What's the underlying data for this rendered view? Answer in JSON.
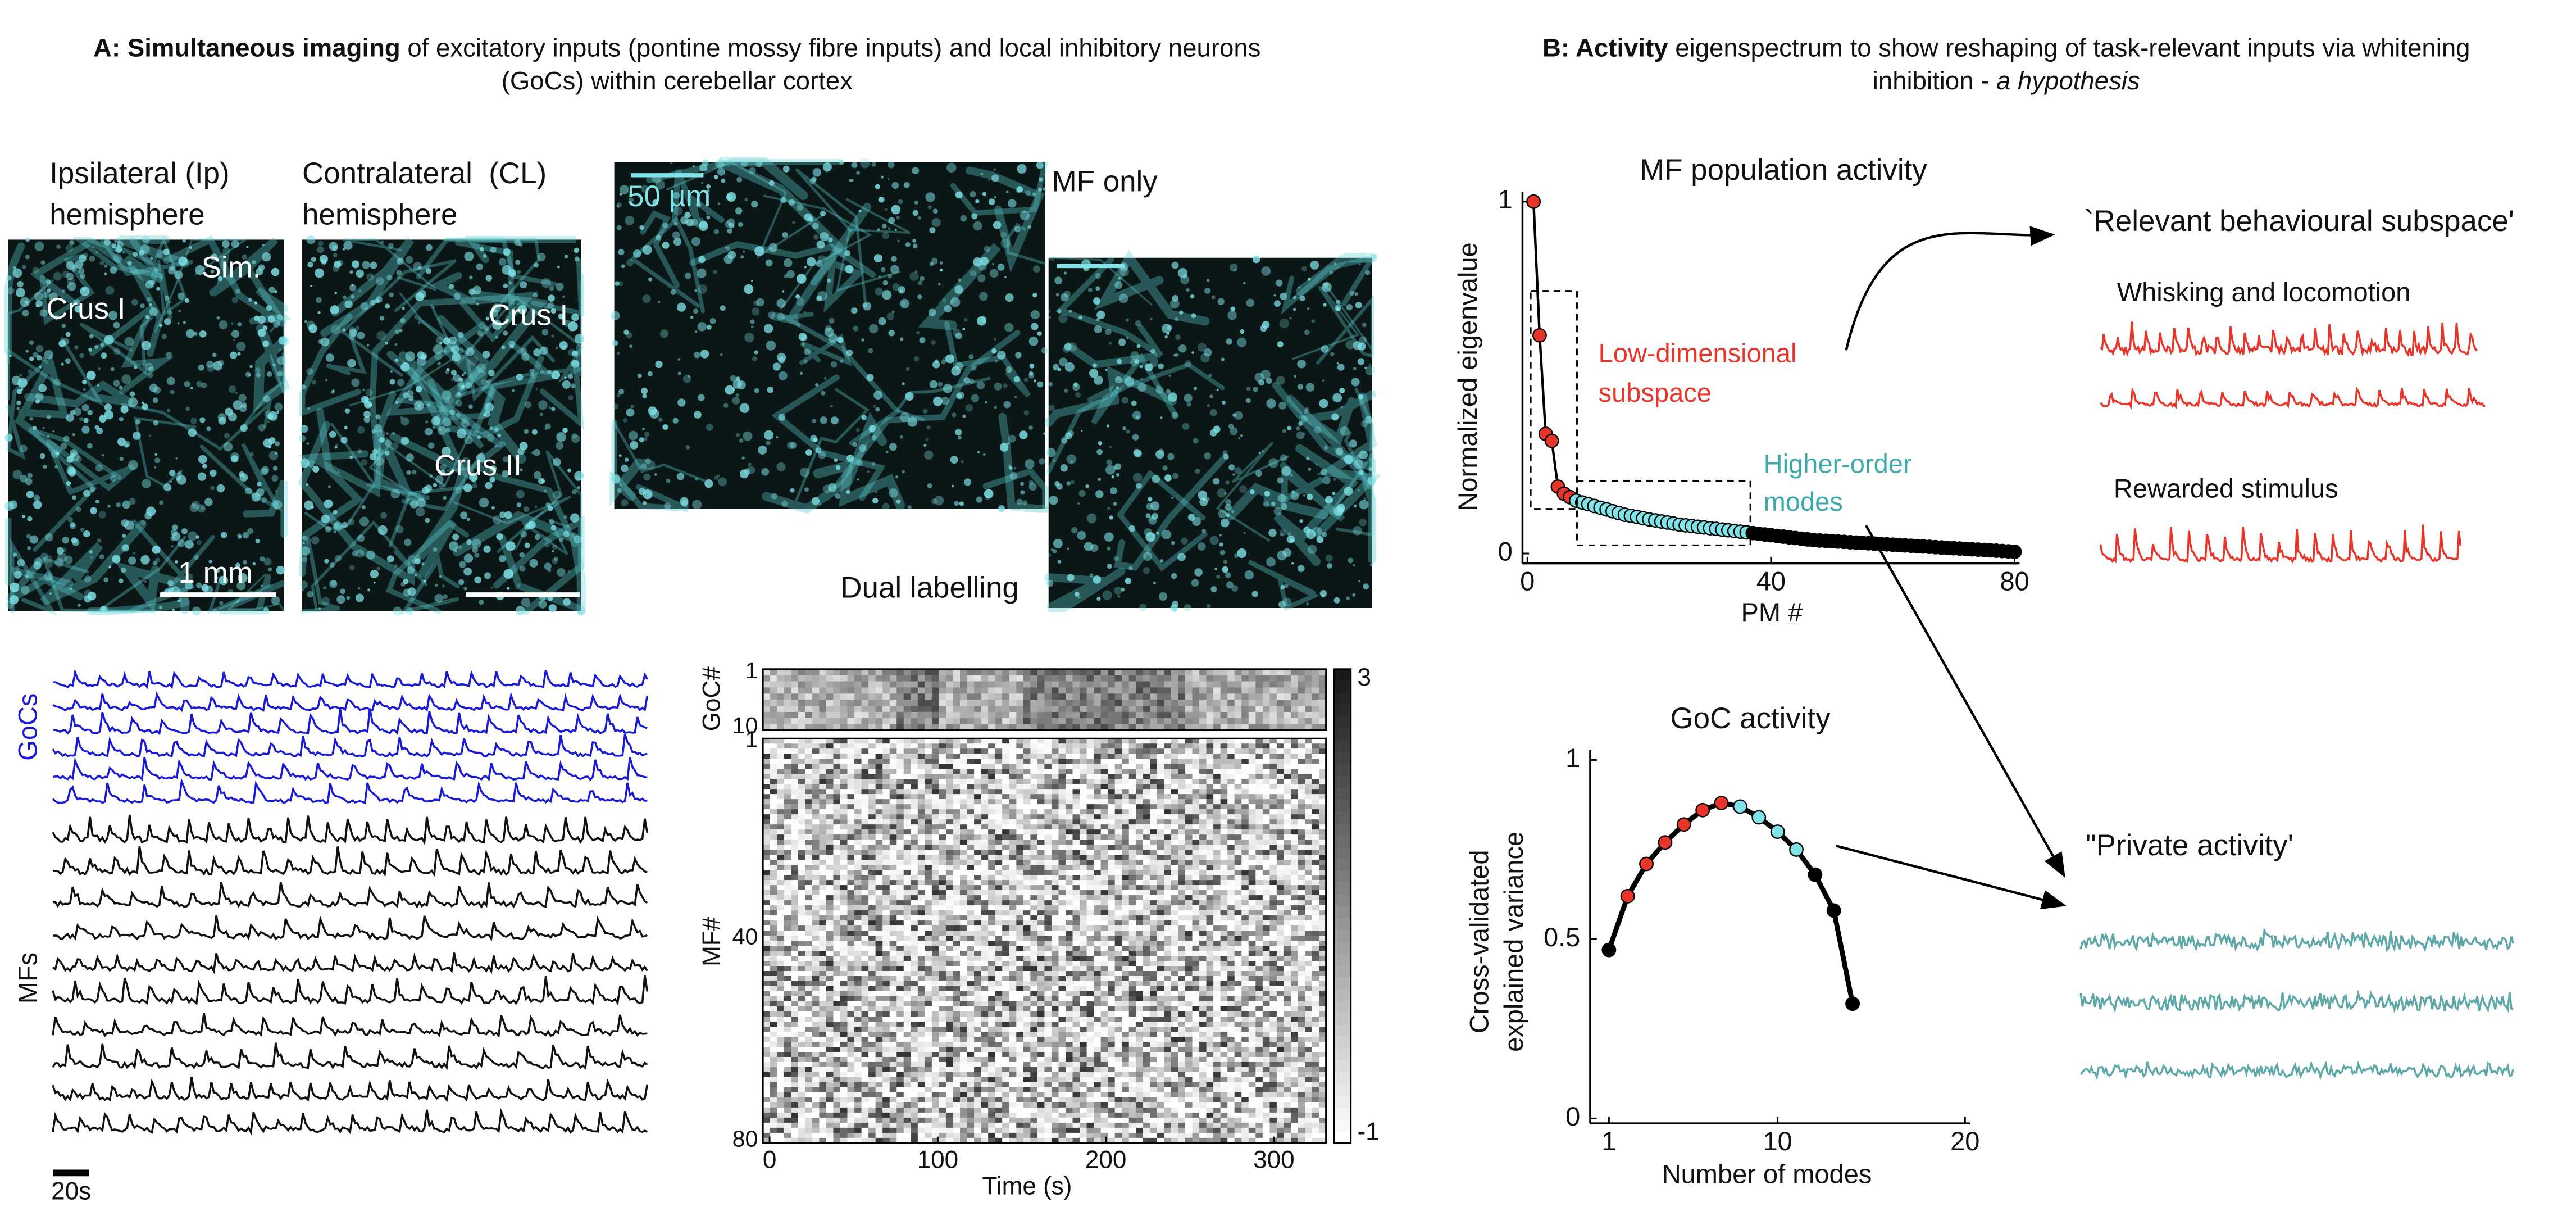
{
  "panel_a": {
    "title": {
      "bold": "A: Simultaneous imaging",
      "line1": " of excitatory inputs (pontine mossy fibre inputs) and local inhibitory neurons",
      "line2": "(GoCs) within cerebellar cortex"
    },
    "hemispheres": {
      "ipsilateral": [
        "Ipsilateral (Ip)",
        "hemisphere"
      ],
      "contralateral": [
        "Contralateral  (CL)",
        "hemisphere"
      ],
      "sim": "Sim.",
      "crus_i_ip": "Crus I",
      "crus_i_cl": "Crus I",
      "crus_ii": "Crus II",
      "scale": "1 mm"
    },
    "zoom": {
      "scale": "50 µm",
      "mf_only": "MF only",
      "dual": "Dual labelling"
    },
    "traces": {
      "goc_label": "GoCs",
      "mf_label": "MFs",
      "scale": "20s"
    },
    "heatmap": {
      "goc_label": "GoC#",
      "goc_ticks": [
        1,
        10
      ],
      "mf_label": "MF#",
      "mf_ticks": [
        1,
        40,
        80
      ],
      "xlabel": "Time (s)",
      "xlim": [
        -4,
        331
      ],
      "xticks": [
        0,
        100,
        200,
        300
      ],
      "colorbar_ticks": [
        3,
        -1
      ]
    }
  },
  "panel_b": {
    "title": {
      "bold": "B: Activity",
      "line1": " eigenspectrum to show reshaping of task-relevant inputs via whitening",
      "line2": "inhibition - ",
      "italic": "a hypothesis"
    },
    "eigenspectrum": {
      "type": "scatter",
      "title": "MF population activity",
      "xlabel": "PM #",
      "ylabel": "Normalized eigenvalue",
      "xlim": [
        0,
        80
      ],
      "ylim": [
        0,
        1
      ],
      "xticks": [
        0,
        40,
        80
      ],
      "yticks": [
        1,
        0
      ],
      "annotations": {
        "low": [
          "Low-dimensional",
          "subspace"
        ],
        "high": [
          "Higher-order",
          "modes"
        ]
      },
      "series": [
        {
          "color": "#e8352a",
          "x": [
            1,
            2,
            3,
            4,
            5,
            6,
            7
          ],
          "values": [
            1,
            0.62,
            0.34,
            0.32,
            0.19,
            0.17,
            0.16
          ]
        },
        {
          "color": "#7fe3e8",
          "x": [
            8,
            9,
            10,
            11,
            12,
            13,
            14,
            15,
            16,
            17,
            18,
            19,
            20,
            21,
            22,
            23,
            24,
            25,
            26,
            27,
            28,
            29,
            30,
            31,
            32,
            33,
            34,
            35,
            36
          ],
          "values": [
            0.15,
            0.145,
            0.14,
            0.135,
            0.13,
            0.125,
            0.12,
            0.115,
            0.11,
            0.107,
            0.104,
            0.1,
            0.097,
            0.094,
            0.091,
            0.088,
            0.085,
            0.082,
            0.08,
            0.078,
            0.076,
            0.074,
            0.072,
            0.07,
            0.068,
            0.066,
            0.064,
            0.062,
            0.06
          ]
        },
        {
          "color": "#000000",
          "x": [
            37,
            38,
            39,
            40,
            41,
            42,
            43,
            44,
            45,
            46,
            47,
            48,
            49,
            50,
            51,
            52,
            53,
            54,
            55,
            56,
            57,
            58,
            59,
            60,
            61,
            62,
            63,
            64,
            65,
            66,
            67,
            68,
            69,
            70,
            71,
            72,
            73,
            74,
            75,
            76,
            77,
            78,
            79,
            80
          ],
          "values": [
            0.058,
            0.056,
            0.054,
            0.052,
            0.05,
            0.048,
            0.046,
            0.044,
            0.042,
            0.04,
            0.038,
            0.037,
            0.036,
            0.035,
            0.034,
            0.033,
            0.032,
            0.031,
            0.03,
            0.029,
            0.028,
            0.027,
            0.026,
            0.025,
            0.024,
            0.023,
            0.022,
            0.021,
            0.02,
            0.019,
            0.018,
            0.017,
            0.016,
            0.015,
            0.014,
            0.013,
            0.012,
            0.011,
            0.01,
            0.009,
            0.008,
            0.007,
            0.006,
            0.005
          ]
        }
      ]
    },
    "goc_activity": {
      "type": "line",
      "title": "GoC activity",
      "xlabel": "Number of modes",
      "ylabel": [
        "Cross-validated",
        "explained variance"
      ],
      "xlim": [
        0,
        20
      ],
      "ylim": [
        0,
        1
      ],
      "xticks": [
        1,
        10,
        20
      ],
      "yticks": [
        1,
        0.5,
        0
      ],
      "x": [
        1,
        2,
        3,
        4,
        5,
        6,
        7,
        8,
        9,
        10,
        11,
        12,
        13,
        14
      ],
      "values": [
        0.47,
        0.62,
        0.71,
        0.77,
        0.82,
        0.86,
        0.88,
        0.87,
        0.84,
        0.8,
        0.75,
        0.68,
        0.58,
        0.32
      ],
      "colors": [
        "#000000",
        "#e8352a",
        "#e8352a",
        "#e8352a",
        "#e8352a",
        "#e8352a",
        "#e8352a",
        "#7fe3e8",
        "#7fe3e8",
        "#7fe3e8",
        "#7fe3e8",
        "#000000",
        "#000000",
        "#000000"
      ]
    },
    "relevant": "`Relevant behavioural subspace'",
    "whisking": "Whisking and locomotion",
    "rewarded": "Rewarded stimulus",
    "private": "\"Private activity'"
  }
}
